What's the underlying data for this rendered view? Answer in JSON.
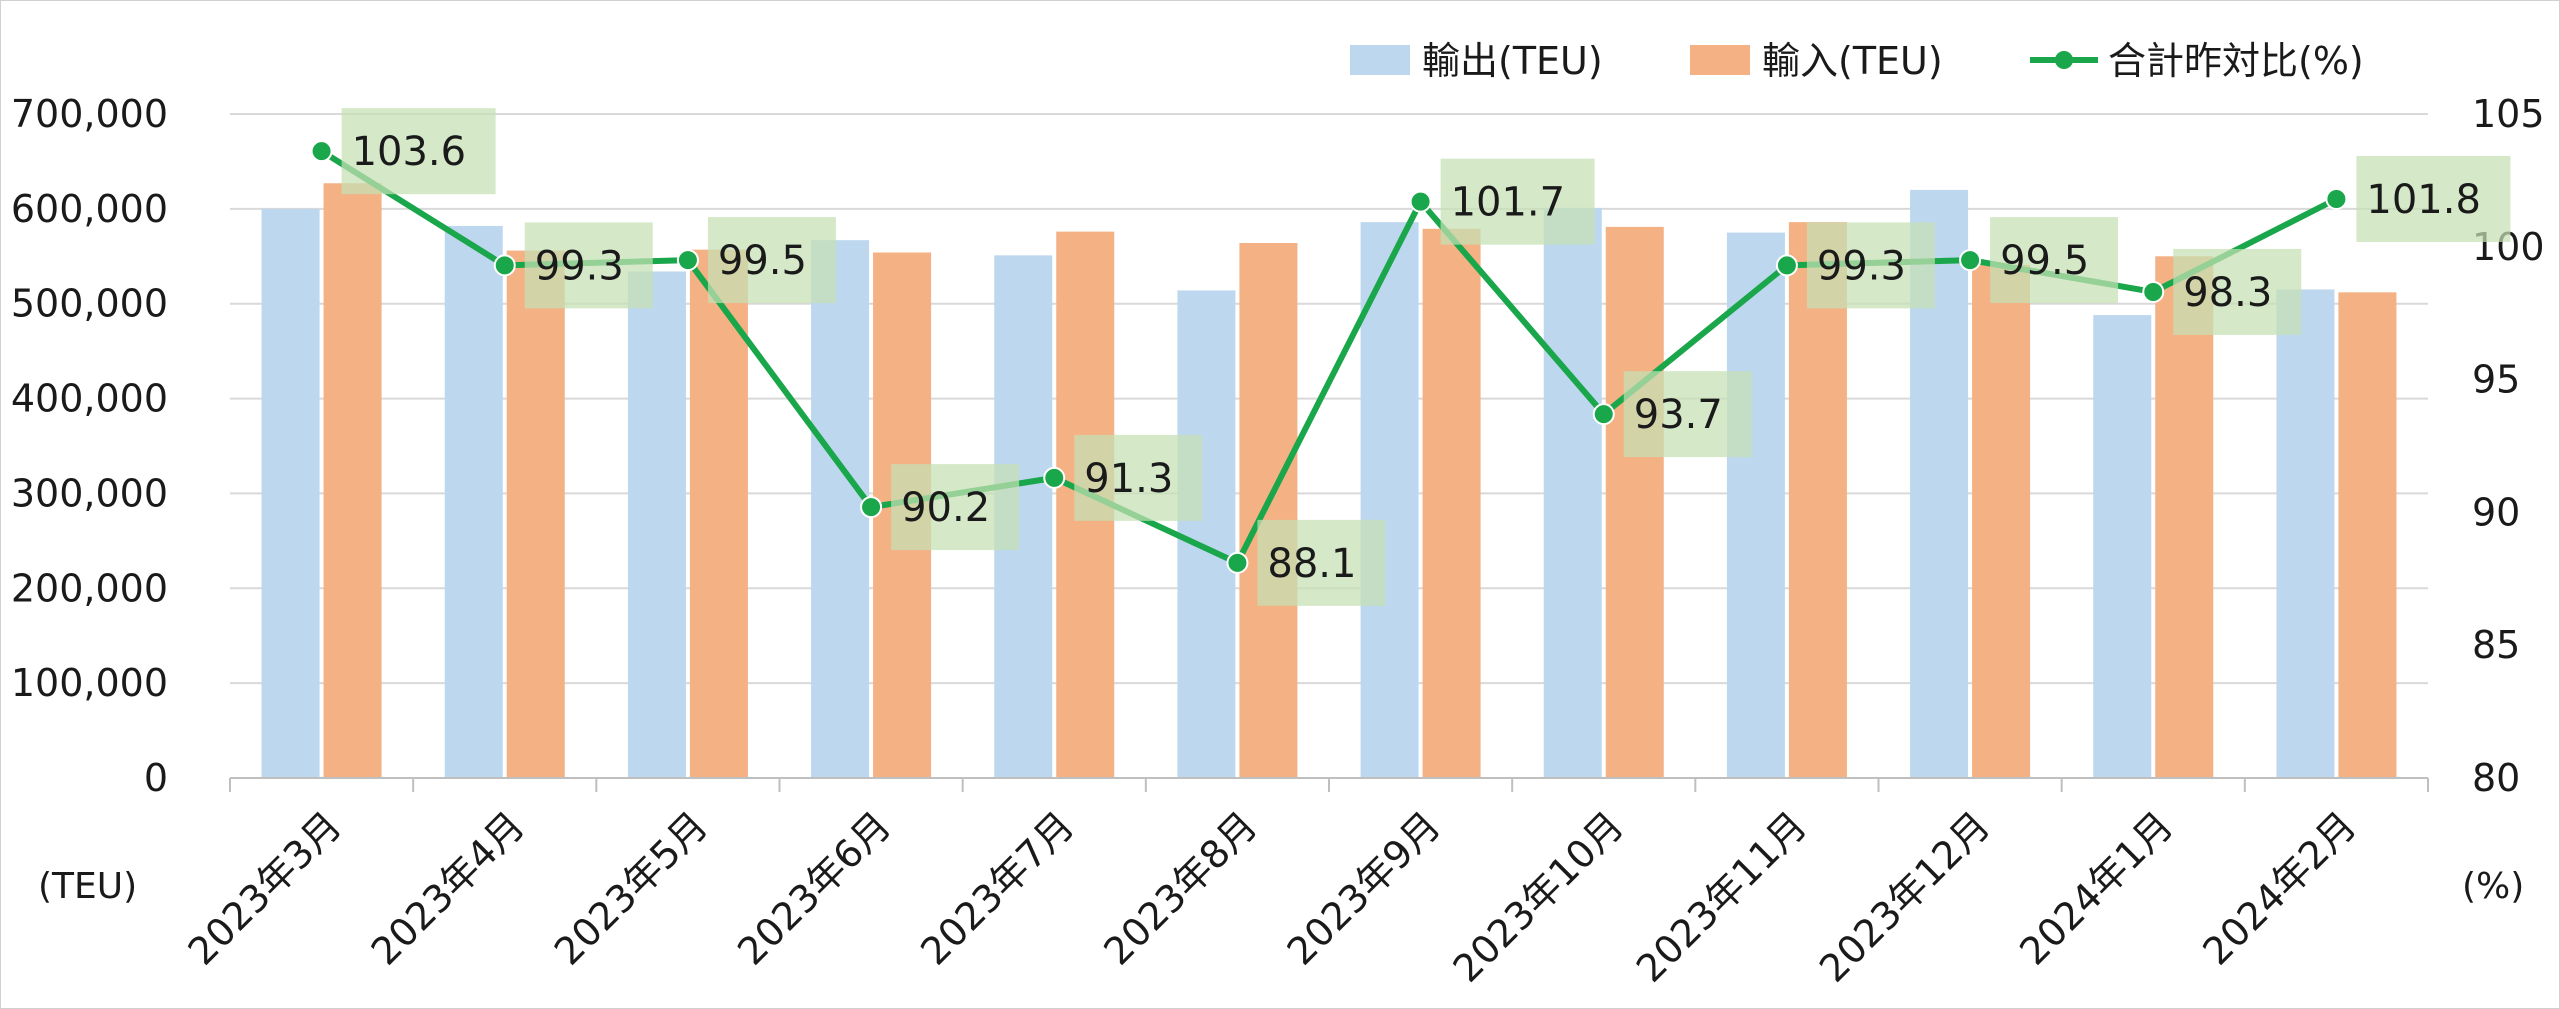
{
  "chart_data": {
    "type": "bar",
    "categories": [
      "2023年3月",
      "2023年4月",
      "2023年5月",
      "2023年6月",
      "2023年7月",
      "2023年8月",
      "2023年9月",
      "2023年10月",
      "2023年11月",
      "2023年12月",
      "2024年1月",
      "2024年2月"
    ],
    "series": [
      {
        "name": "輸出(TEU)",
        "type": "bar",
        "axis": "left",
        "color": "#bdd7ee",
        "values": [
          600000,
          582000,
          534000,
          567000,
          551000,
          514000,
          586000,
          601000,
          575000,
          620000,
          488000,
          515000
        ]
      },
      {
        "name": "輸入(TEU)",
        "type": "bar",
        "axis": "left",
        "color": "#f4b183",
        "values": [
          627000,
          556000,
          557000,
          554000,
          576000,
          564000,
          579000,
          581000,
          586000,
          541000,
          550000,
          512000
        ]
      },
      {
        "name": "合計昨対比(%)",
        "type": "line",
        "axis": "right",
        "color": "#1aa64a",
        "values": [
          103.6,
          99.3,
          99.5,
          90.2,
          91.3,
          88.1,
          101.7,
          93.7,
          99.3,
          99.5,
          98.3,
          101.8
        ],
        "labels": [
          "103.6",
          "99.3",
          "99.5",
          "90.2",
          "91.3",
          "88.1",
          "101.7",
          "93.7",
          "99.3",
          "99.5",
          "98.3",
          "101.8"
        ]
      }
    ],
    "ylim": [
      0,
      700000
    ],
    "y_ticks": [
      "0",
      "100,000",
      "200,000",
      "300,000",
      "400,000",
      "500,000",
      "600,000",
      "700,000"
    ],
    "y_tick_values": [
      0,
      100000,
      200000,
      300000,
      400000,
      500000,
      600000,
      700000
    ],
    "y2lim": [
      80,
      105
    ],
    "y2_ticks": [
      "80",
      "85",
      "90",
      "95",
      "100",
      "105"
    ],
    "y2_tick_values": [
      80,
      85,
      90,
      95,
      100,
      105
    ],
    "ylabel": "(TEU)",
    "y2label": "(%)",
    "legend_position": "top-right",
    "grid": true,
    "label_box_color": "#c5e0b4"
  }
}
